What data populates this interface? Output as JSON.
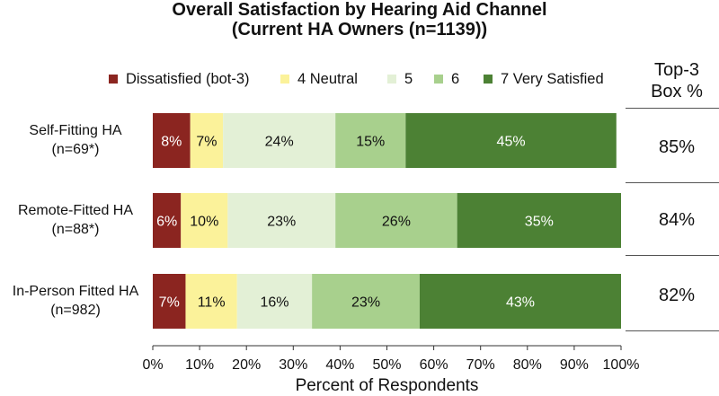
{
  "chart_data": {
    "type": "bar",
    "orientation": "horizontal",
    "stacked": true,
    "title": "Overall Satisfaction by Hearing Aid Channel",
    "subtitle": "(Current HA Owners (n=1139))",
    "xlabel": "Percent of Respondents",
    "ylabel": "",
    "xlim": [
      0,
      100
    ],
    "xticks": [
      "0%",
      "10%",
      "20%",
      "30%",
      "40%",
      "50%",
      "60%",
      "70%",
      "80%",
      "90%",
      "100%"
    ],
    "grid": false,
    "legend_position": "top",
    "categories": [
      {
        "name": "Self-Fitting HA",
        "sub": "(n=69*)"
      },
      {
        "name": "Remote-Fitted HA",
        "sub": "(n=88*)"
      },
      {
        "name": "In-Person Fitted HA",
        "sub": "(n=982)"
      }
    ],
    "series": [
      {
        "name": "Dissatisfied (bot-3)",
        "color": "#8b2520",
        "label_color": "#ffffff",
        "values": [
          8,
          6,
          7
        ],
        "labels": [
          "8%",
          "6%",
          "7%"
        ]
      },
      {
        "name": "4 Neutral",
        "color": "#fbf29a",
        "label_color": "#111111",
        "values": [
          7,
          10,
          11
        ],
        "labels": [
          "7%",
          "10%",
          "11%"
        ]
      },
      {
        "name": "5",
        "color": "#e3f0d6",
        "label_color": "#111111",
        "values": [
          24,
          23,
          16
        ],
        "labels": [
          "24%",
          "23%",
          "16%"
        ]
      },
      {
        "name": "6",
        "color": "#a8d08d",
        "label_color": "#111111",
        "values": [
          15,
          26,
          23
        ],
        "labels": [
          "15%",
          "26%",
          "23%"
        ]
      },
      {
        "name": "7 Very Satisfied",
        "color": "#4c8134",
        "label_color": "#ffffff",
        "values": [
          45,
          35,
          43
        ],
        "labels": [
          "45%",
          "35%",
          "43%"
        ]
      }
    ],
    "top3": {
      "header_line1": "Top-3",
      "header_line2": "Box %",
      "values": [
        "85%",
        "84%",
        "82%"
      ]
    }
  }
}
